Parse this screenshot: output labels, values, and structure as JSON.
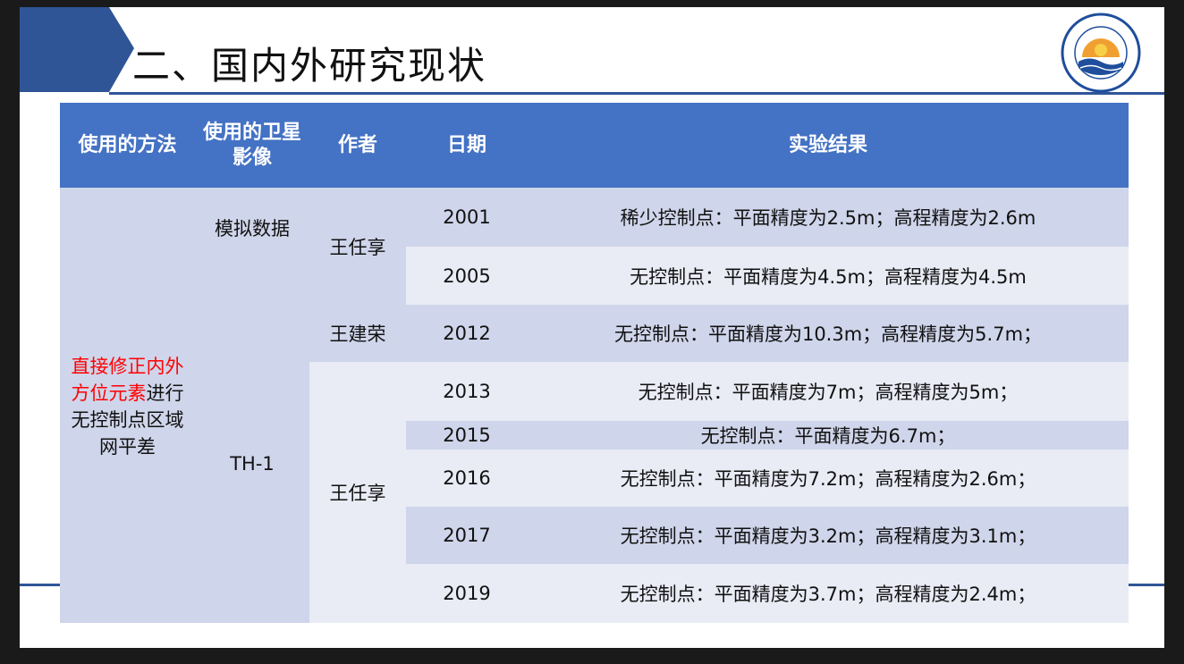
{
  "title": "二、国内外研究现状",
  "logo": {
    "text": "上海海洋大学",
    "english": "SHANGHAI OCEAN UNIVERSITY",
    "year": "1912"
  },
  "table": {
    "headers": {
      "method": "使用的方法",
      "imagery": "使用的卫星影像",
      "author": "作者",
      "date": "日期",
      "result": "实验结果"
    },
    "method_red": "直接修正内外方位元素",
    "method_black": "进行无控制点区域网平差",
    "imagery_simulated": "模拟数据",
    "imagery_th1": "TH-1",
    "authors": [
      "王任享",
      "王建荣",
      "王任享"
    ],
    "rows": [
      {
        "year": "2001",
        "result": "稀少控制点：平面精度为2.5m；高程精度为2.6m"
      },
      {
        "year": "2005",
        "result": "无控制点：平面精度为4.5m；高程精度为4.5m"
      },
      {
        "year": "2012",
        "result": "无控制点：平面精度为10.3m；高程精度为5.7m；"
      },
      {
        "year": "2013",
        "result": "无控制点：平面精度为7m；高程精度为5m；"
      },
      {
        "year": "2015",
        "result": "无控制点：平面精度为6.7m；"
      },
      {
        "year": "2016",
        "result": "无控制点：平面精度为7.2m；高程精度为2.6m；"
      },
      {
        "year": "2017",
        "result": "无控制点：平面精度为3.2m；高程精度为3.1m；"
      },
      {
        "year": "2019",
        "result": "无控制点：平面精度为3.7m；高程精度为2.4m；"
      }
    ]
  },
  "colors": {
    "header": "#4472c4",
    "band_dark": "#cfd5ea",
    "band_light": "#e9ebf5",
    "accent": "#2f5597",
    "highlight": "#ff0000"
  }
}
